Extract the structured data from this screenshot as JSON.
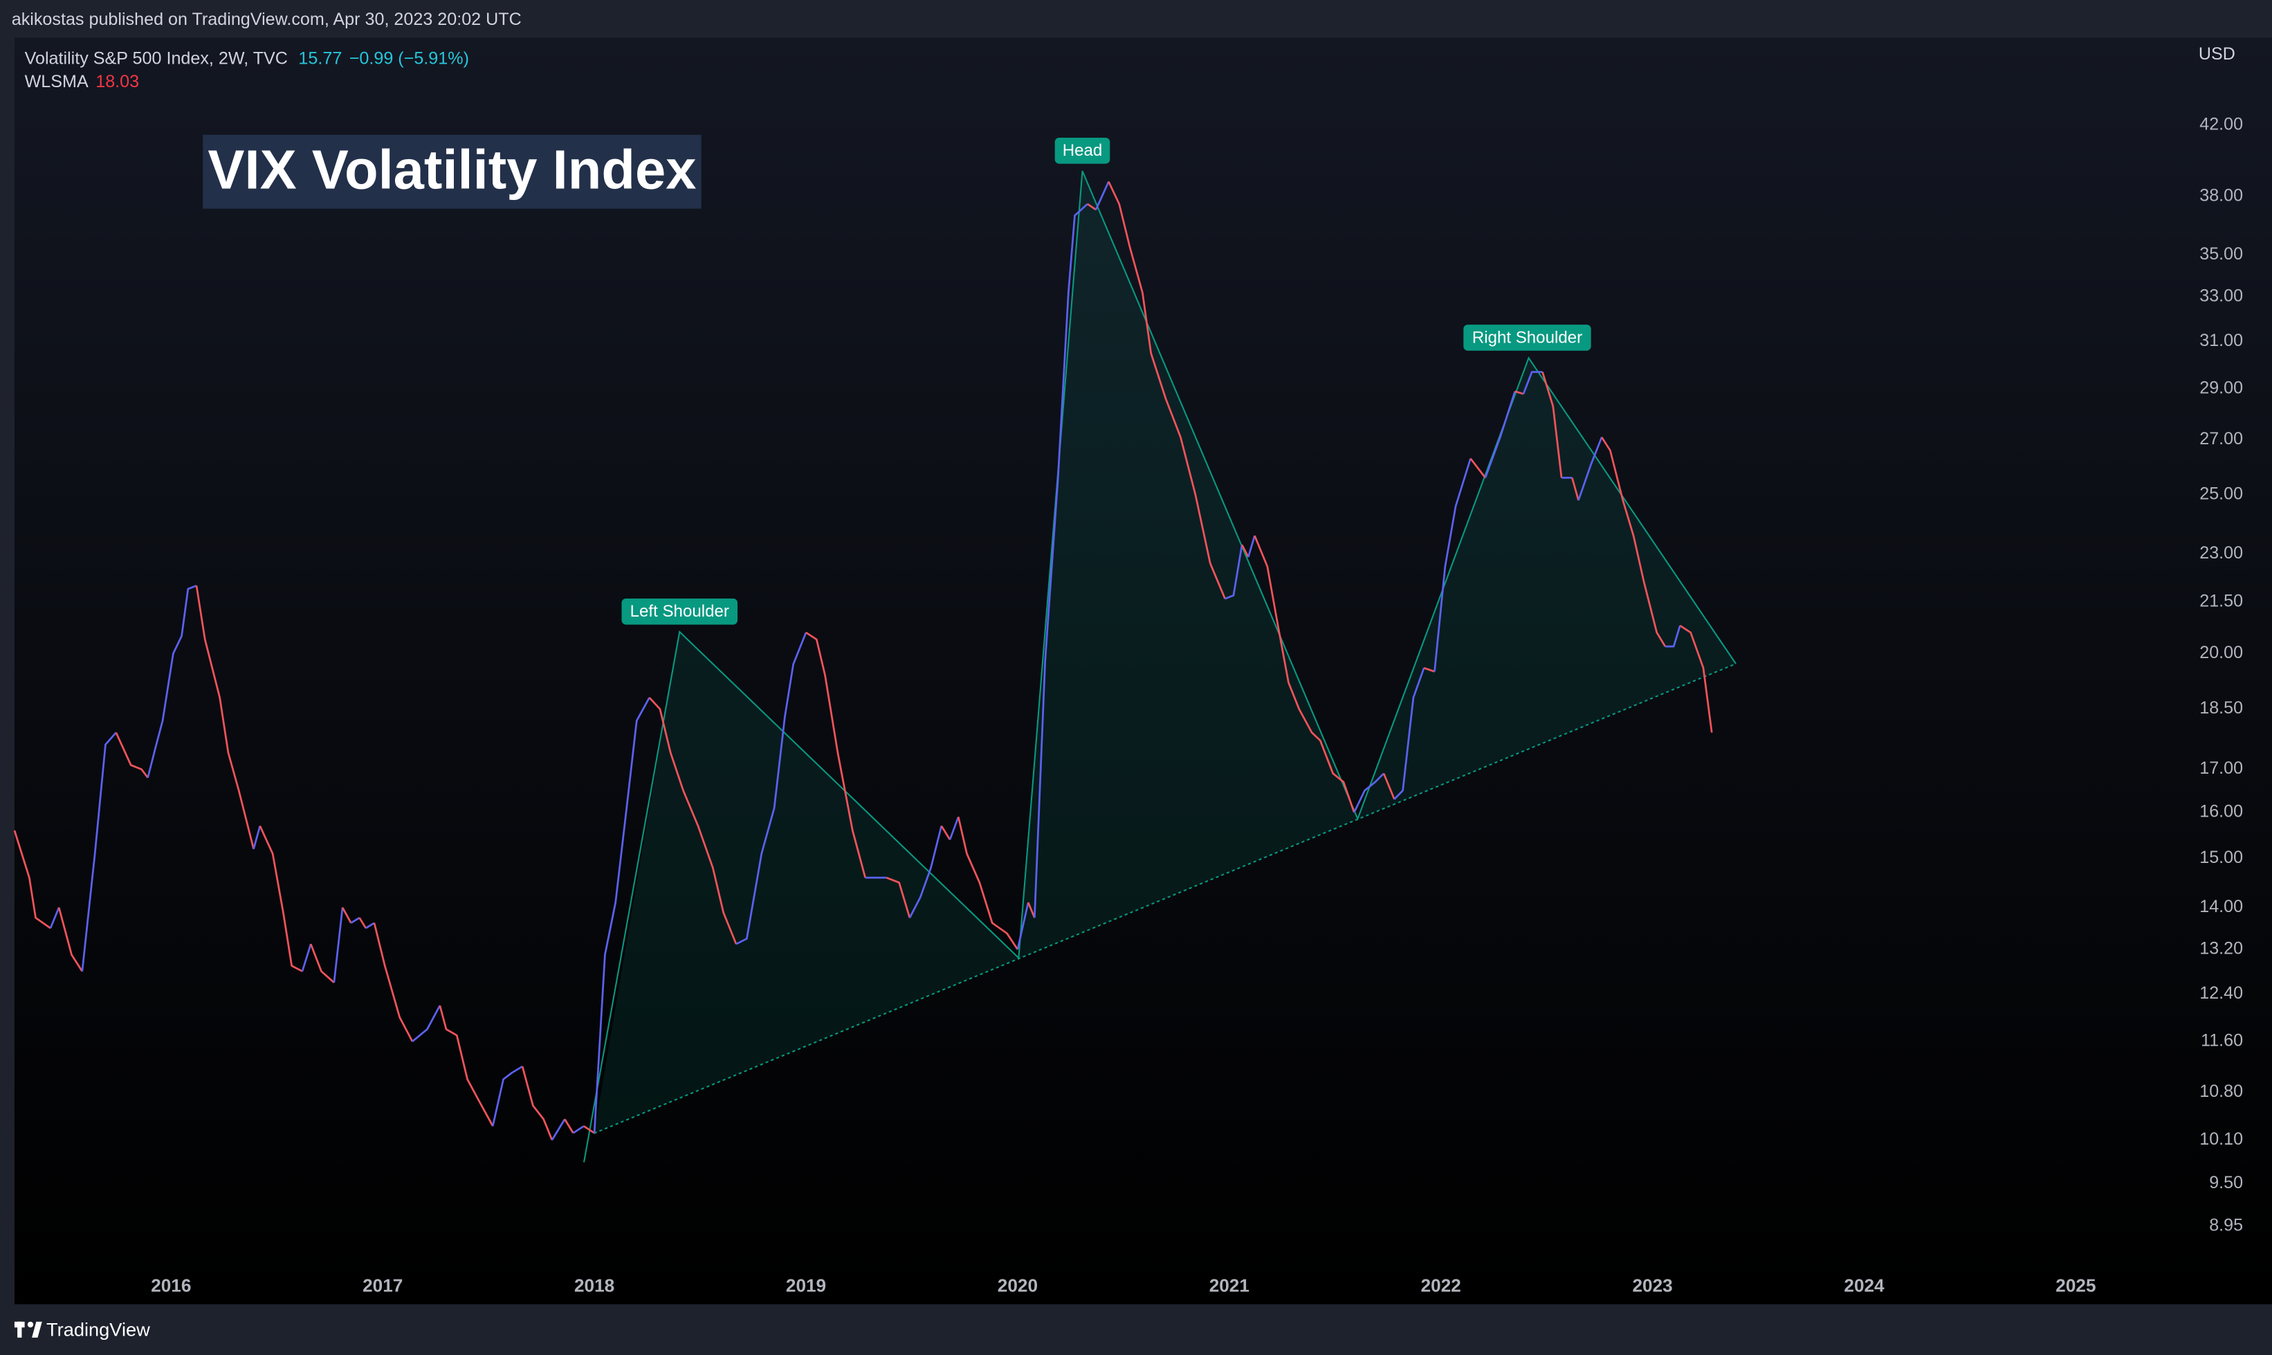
{
  "header": {
    "byline": "akikostas published on TradingView.com, Apr 30, 2023 20:02 UTC"
  },
  "legend": {
    "symbol": "Volatility S&P 500 Index, 2W, TVC",
    "price": "15.77",
    "change": "−0.99 (−5.91%)",
    "indicator_value": "18.03"
  },
  "footer": {
    "brand": "TradingView"
  },
  "chart_data": {
    "type": "line",
    "title": "VIX Volatility Index",
    "y_unit": "USD",
    "log_y": true,
    "grid": false,
    "annotations": [
      "Left Shoulder",
      "Head",
      "Right Shoulder"
    ],
    "x": [
      2015.26,
      2015.33,
      2015.36,
      2015.43,
      2015.47,
      2015.53,
      2015.58,
      2015.64,
      2015.69,
      2015.74,
      2015.81,
      2015.86,
      2015.89,
      2015.93,
      2015.96,
      2016.01,
      2016.05,
      2016.08,
      2016.12,
      2016.16,
      2016.23,
      2016.27,
      2016.32,
      2016.39,
      2016.42,
      2016.48,
      2016.53,
      2016.57,
      2016.62,
      2016.66,
      2016.71,
      2016.77,
      2016.81,
      2016.85,
      2016.89,
      2016.92,
      2016.96,
      2017.01,
      2017.08,
      2017.14,
      2017.21,
      2017.27,
      2017.3,
      2017.35,
      2017.4,
      2017.45,
      2017.52,
      2017.57,
      2017.61,
      2017.66,
      2017.71,
      2017.76,
      2017.8,
      2017.86,
      2017.9,
      2017.95,
      2018.0,
      2018.05,
      2018.1,
      2018.15,
      2018.2,
      2018.26,
      2018.31,
      2018.36,
      2018.42,
      2018.49,
      2018.56,
      2018.61,
      2018.67,
      2018.72,
      2018.79,
      2018.85,
      2018.9,
      2018.94,
      2019.0,
      2019.05,
      2019.09,
      2019.15,
      2019.22,
      2019.28,
      2019.33,
      2019.38,
      2019.44,
      2019.49,
      2019.54,
      2019.59,
      2019.64,
      2019.68,
      2019.72,
      2019.76,
      2019.82,
      2019.88,
      2019.95,
      2020.0,
      2020.05,
      2020.08,
      2020.13,
      2020.19,
      2020.24,
      2020.27,
      2020.33,
      2020.37,
      2020.43,
      2020.48,
      2020.53,
      2020.59,
      2020.63,
      2020.7,
      2020.77,
      2020.84,
      2020.91,
      2020.98,
      2021.02,
      2021.06,
      2021.09,
      2021.12,
      2021.18,
      2021.23,
      2021.28,
      2021.33,
      2021.39,
      2021.43,
      2021.49,
      2021.54,
      2021.59,
      2021.64,
      2021.69,
      2021.73,
      2021.78,
      2021.82,
      2021.87,
      2021.92,
      2021.97,
      2022.02,
      2022.07,
      2022.14,
      2022.21,
      2022.28,
      2022.35,
      2022.39,
      2022.43,
      2022.48,
      2022.53,
      2022.57,
      2022.62,
      2022.65,
      2022.71,
      2022.76,
      2022.8,
      2022.86,
      2022.91,
      2022.96,
      2023.02,
      2023.06,
      2023.1,
      2023.13,
      2023.18,
      2023.24,
      2023.28
    ],
    "series": [
      {
        "name": "WLSMA",
        "up_color": "#5b62f0",
        "down_color": "#f2545b",
        "values": [
          15.6,
          14.6,
          13.8,
          13.6,
          14.0,
          13.1,
          12.8,
          15.1,
          17.6,
          17.9,
          17.1,
          17.0,
          16.8,
          17.6,
          18.2,
          20.0,
          20.5,
          21.9,
          22.0,
          20.4,
          18.8,
          17.4,
          16.5,
          15.2,
          15.7,
          15.1,
          13.9,
          12.9,
          12.8,
          13.3,
          12.8,
          12.6,
          14.0,
          13.7,
          13.8,
          13.6,
          13.7,
          12.9,
          12.0,
          11.6,
          11.8,
          12.2,
          11.8,
          11.7,
          11.0,
          10.7,
          10.3,
          11.0,
          11.1,
          11.2,
          10.6,
          10.4,
          10.1,
          10.4,
          10.2,
          10.3,
          10.2,
          13.1,
          14.1,
          16.0,
          18.2,
          18.8,
          18.5,
          17.4,
          16.5,
          15.7,
          14.8,
          13.9,
          13.3,
          13.4,
          15.1,
          16.1,
          18.3,
          19.7,
          20.6,
          20.4,
          19.4,
          17.4,
          15.6,
          14.6,
          14.6,
          14.6,
          14.5,
          13.8,
          14.2,
          14.8,
          15.7,
          15.4,
          15.9,
          15.1,
          14.5,
          13.7,
          13.5,
          13.2,
          14.1,
          13.8,
          19.8,
          25.5,
          33.2,
          37.0,
          37.6,
          37.3,
          38.8,
          37.6,
          35.4,
          33.2,
          30.5,
          28.6,
          27.1,
          25.0,
          22.7,
          21.6,
          21.7,
          23.3,
          22.9,
          23.6,
          22.6,
          20.8,
          19.2,
          18.5,
          17.9,
          17.7,
          16.9,
          16.7,
          16.0,
          16.5,
          16.7,
          16.9,
          16.3,
          16.5,
          18.8,
          19.6,
          19.5,
          22.6,
          24.6,
          26.3,
          25.6,
          27.1,
          28.9,
          28.8,
          29.7,
          29.7,
          28.3,
          25.6,
          25.6,
          24.8,
          26.1,
          27.1,
          26.6,
          24.8,
          23.6,
          22.1,
          20.6,
          20.2,
          20.2,
          20.8,
          20.6,
          19.6,
          17.9
        ]
      }
    ],
    "xlim": [
      2015.26,
      2025.53
    ],
    "xticks": [
      2016,
      2017,
      2018,
      2019,
      2020,
      2021,
      2022,
      2023,
      2024,
      2025
    ],
    "ylim": [
      8.49,
      47.3
    ],
    "yticks": [
      {
        "value": 42,
        "label": "42.00"
      },
      {
        "value": 38,
        "label": "38.00"
      },
      {
        "value": 35,
        "label": "35.00"
      },
      {
        "value": 33,
        "label": "33.00"
      },
      {
        "value": 31,
        "label": "31.00"
      },
      {
        "value": 29,
        "label": "29.00"
      },
      {
        "value": 27,
        "label": "27.00"
      },
      {
        "value": 25,
        "label": "25.00"
      },
      {
        "value": 23,
        "label": "23.00"
      },
      {
        "value": 21.5,
        "label": "21.50"
      },
      {
        "value": 20,
        "label": "20.00"
      },
      {
        "value": 18.5,
        "label": "18.50"
      },
      {
        "value": 17,
        "label": "17.00"
      },
      {
        "value": 16,
        "label": "16.00"
      },
      {
        "value": 15,
        "label": "15.00"
      },
      {
        "value": 14,
        "label": "14.00"
      },
      {
        "value": 13.2,
        "label": "13.20"
      },
      {
        "value": 12.4,
        "label": "12.40"
      },
      {
        "value": 11.6,
        "label": "11.60"
      },
      {
        "value": 10.8,
        "label": "10.80"
      },
      {
        "value": 10.1,
        "label": "10.10"
      },
      {
        "value": 9.5,
        "label": "9.50"
      },
      {
        "value": 8.95,
        "label": "8.95"
      }
    ]
  }
}
